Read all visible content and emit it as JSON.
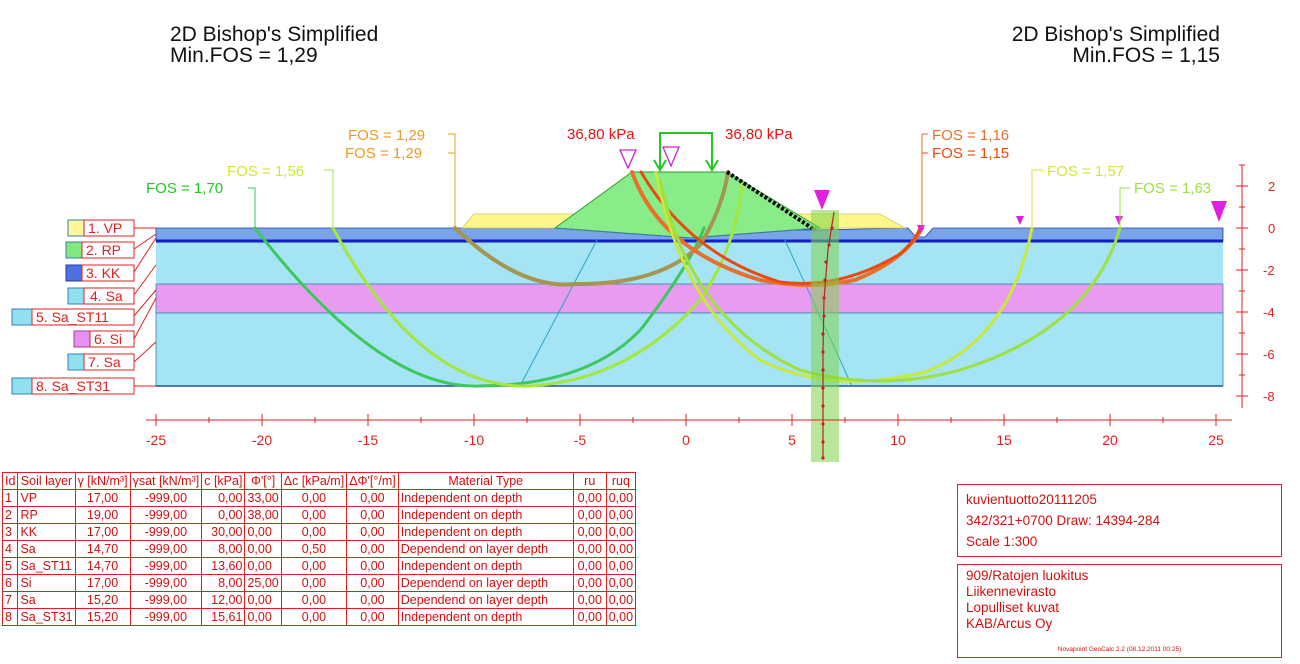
{
  "header_left": {
    "method": "2D Bishop's Simplified",
    "fos": "Min.FOS = 1,29"
  },
  "header_right": {
    "method": "2D Bishop's Simplified",
    "fos": "Min.FOS = 1,15"
  },
  "loads": {
    "left": "36,80 kPa",
    "right": "36,80 kPa"
  },
  "fos_labels": [
    "FOS = 1,70",
    "FOS = 1,56",
    "FOS = 1,29",
    "FOS = 1,29",
    "FOS = 1,16",
    "FOS = 1,15",
    "FOS = 1,57",
    "FOS = 1,63"
  ],
  "layer_tags": [
    "1. VP",
    "2. RP",
    "3. KK",
    "4. Sa",
    "5. Sa_ST11",
    "6. Si",
    "7. Sa",
    "8. Sa_ST31"
  ],
  "layer_colors": [
    "#fff59a",
    "#7fe87f",
    "#5070e0",
    "#90e0f0",
    "#90e0f0",
    "#e890f0",
    "#90e0f0",
    "#90e0f0"
  ],
  "x_axis": {
    "ticks": [
      "-25",
      "-20",
      "-15",
      "-10",
      "-5",
      "0",
      "5",
      "10",
      "15",
      "20",
      "25"
    ]
  },
  "y_axis": {
    "ticks": [
      "2",
      "0",
      "-2",
      "-4",
      "-6",
      "-8"
    ]
  },
  "table": {
    "headers": [
      "Id",
      "Soil layer",
      "γ [kN/m³]",
      "γsat [kN/m³]",
      "c [kPa]",
      "Φ'[°]",
      "Δc [kPa/m]",
      "ΔΦ'[°/m]",
      "Material Type",
      "ru",
      "ruq"
    ],
    "rows": [
      [
        "1",
        "VP",
        "17,00",
        "-999,00",
        "0,00",
        "33,00",
        "0,00",
        "0,00",
        "Independent on depth",
        "0,00",
        "0,00"
      ],
      [
        "2",
        "RP",
        "19,00",
        "-999,00",
        "0,00",
        "38,00",
        "0,00",
        "0,00",
        "Independent on depth",
        "0,00",
        "0,00"
      ],
      [
        "3",
        "KK",
        "17,00",
        "-999,00",
        "30,00",
        "0,00",
        "0,00",
        "0,00",
        "Independent on depth",
        "0,00",
        "0,00"
      ],
      [
        "4",
        "Sa",
        "14,70",
        "-999,00",
        "8,00",
        "0,00",
        "0,50",
        "0,00",
        "Dependend on layer depth",
        "0,00",
        "0,00"
      ],
      [
        "5",
        "Sa_ST11",
        "14,70",
        "-999,00",
        "13,60",
        "0,00",
        "0,00",
        "0,00",
        "Independent on depth",
        "0,00",
        "0,00"
      ],
      [
        "6",
        "Si",
        "17,00",
        "-999,00",
        "8,00",
        "25,00",
        "0,00",
        "0,00",
        "Dependend on layer depth",
        "0,00",
        "0,00"
      ],
      [
        "7",
        "Sa",
        "15,20",
        "-999,00",
        "12,00",
        "0,00",
        "0,00",
        "0,00",
        "Dependend on layer depth",
        "0,00",
        "0,00"
      ],
      [
        "8",
        "Sa_ST31",
        "15,20",
        "-999,00",
        "15,61",
        "0,00",
        "0,00",
        "0,00",
        "Independent on depth",
        "0,00",
        "0,00"
      ]
    ]
  },
  "info_box": {
    "project": "kuvientuotto20111205",
    "location": "342/321+0700  Draw: 14394-284",
    "scale": "Scale  1:300",
    "lines": [
      "909/Ratojen luokitus",
      "Liikennevirasto",
      "Lopulliset kuvat",
      "KAB/Arcus Oy"
    ],
    "software": "Novapoint GeoCalc 2.2  (08.12.2011 00:25)"
  }
}
